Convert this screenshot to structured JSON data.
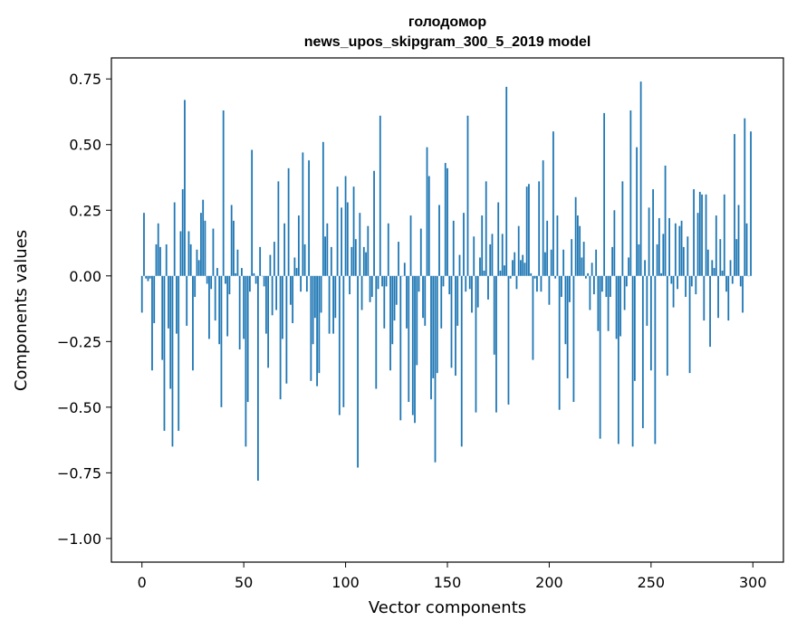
{
  "chart_data": {
    "type": "bar",
    "title_line1": "голодомор",
    "title_line2": "news_upos_skipgram_300_5_2019 model",
    "xlabel": "Vector components",
    "ylabel": "Components values",
    "xlim": [
      -15,
      315
    ],
    "ylim": [
      -1.09,
      0.83
    ],
    "xticks": [
      0,
      50,
      100,
      150,
      200,
      250,
      300
    ],
    "xtick_labels": [
      "0",
      "50",
      "100",
      "150",
      "200",
      "250",
      "300"
    ],
    "yticks": [
      0.75,
      0.5,
      0.25,
      0.0,
      -0.25,
      -0.5,
      -0.75,
      -1.0
    ],
    "ytick_labels": [
      "0.75",
      "0.50",
      "0.25",
      "0.00",
      "−0.25",
      "−0.50",
      "−0.75",
      "−1.00"
    ],
    "bar_color": "#1f77b4",
    "grid": false,
    "values": [
      -0.14,
      0.24,
      -0.01,
      -0.02,
      -0.01,
      -0.36,
      -0.18,
      0.12,
      0.2,
      0.11,
      -0.32,
      -0.59,
      0.12,
      -0.2,
      -0.43,
      -0.65,
      0.28,
      -0.22,
      -0.59,
      0.17,
      0.33,
      0.67,
      -0.19,
      0.17,
      0.12,
      -0.36,
      -0.08,
      0.1,
      0.06,
      0.24,
      0.29,
      0.21,
      -0.03,
      -0.24,
      -0.05,
      0.18,
      -0.17,
      0.03,
      -0.26,
      -0.5,
      0.63,
      -0.03,
      -0.23,
      -0.07,
      0.27,
      0.21,
      0.01,
      0.1,
      -0.28,
      0.03,
      -0.24,
      -0.65,
      -0.48,
      -0.06,
      0.48,
      0.01,
      -0.03,
      -0.78,
      0.11,
      0.0,
      -0.04,
      -0.22,
      -0.35,
      0.08,
      -0.15,
      0.13,
      -0.13,
      0.36,
      -0.47,
      -0.24,
      0.2,
      -0.41,
      0.41,
      -0.11,
      -0.18,
      0.07,
      0.03,
      0.23,
      -0.06,
      0.47,
      0.12,
      -0.06,
      0.44,
      -0.4,
      -0.26,
      -0.16,
      -0.42,
      -0.37,
      -0.14,
      0.51,
      0.15,
      0.2,
      -0.22,
      0.11,
      -0.22,
      -0.16,
      0.34,
      -0.53,
      0.26,
      -0.5,
      0.38,
      0.28,
      -0.07,
      0.11,
      0.34,
      0.14,
      -0.73,
      0.24,
      -0.13,
      0.11,
      0.09,
      0.19,
      -0.1,
      -0.08,
      0.4,
      -0.43,
      -0.05,
      0.61,
      -0.04,
      -0.2,
      -0.04,
      0.2,
      -0.36,
      -0.26,
      -0.17,
      -0.11,
      0.13,
      -0.55,
      0.0,
      0.05,
      -0.2,
      -0.48,
      0.23,
      -0.53,
      -0.56,
      -0.34,
      -0.06,
      0.18,
      -0.16,
      -0.19,
      0.49,
      0.38,
      -0.47,
      -0.39,
      -0.71,
      -0.37,
      0.27,
      -0.2,
      -0.04,
      0.43,
      0.41,
      -0.07,
      -0.35,
      0.21,
      -0.38,
      -0.19,
      0.08,
      -0.65,
      0.24,
      -0.06,
      0.61,
      -0.05,
      -0.14,
      0.15,
      -0.52,
      -0.12,
      0.07,
      0.23,
      0.02,
      0.36,
      -0.09,
      0.12,
      0.16,
      -0.3,
      -0.52,
      0.28,
      0.02,
      0.16,
      0.04,
      0.72,
      -0.49,
      -0.01,
      0.06,
      0.09,
      -0.05,
      0.19,
      0.06,
      0.08,
      0.05,
      0.34,
      0.35,
      0.01,
      -0.32,
      -0.01,
      -0.06,
      0.36,
      -0.06,
      0.44,
      0.09,
      0.21,
      -0.11,
      0.1,
      0.55,
      -0.01,
      0.23,
      -0.51,
      -0.08,
      0.1,
      -0.26,
      -0.39,
      -0.1,
      0.14,
      -0.48,
      0.3,
      0.23,
      0.19,
      0.07,
      0.13,
      -0.01,
      0.01,
      -0.13,
      0.05,
      -0.07,
      0.1,
      -0.21,
      -0.62,
      -0.06,
      0.62,
      -0.08,
      -0.21,
      -0.08,
      0.11,
      0.25,
      -0.24,
      -0.64,
      -0.23,
      0.36,
      -0.13,
      -0.04,
      0.07,
      0.63,
      -0.65,
      -0.4,
      0.49,
      0.12,
      0.74,
      -0.58,
      0.06,
      -0.19,
      0.26,
      -0.36,
      0.33,
      -0.64,
      0.12,
      0.22,
      0.01,
      0.16,
      0.42,
      -0.38,
      0.22,
      -0.03,
      -0.12,
      0.2,
      -0.05,
      0.19,
      0.21,
      0.11,
      -0.08,
      0.15,
      -0.37,
      -0.04,
      0.33,
      -0.07,
      0.24,
      0.32,
      0.31,
      -0.17,
      0.31,
      0.1,
      -0.27,
      0.06,
      0.03,
      0.23,
      -0.16,
      0.14,
      0.02,
      0.31,
      -0.06,
      -0.17,
      0.06,
      -0.03,
      0.54,
      0.14,
      0.27,
      -0.04,
      -0.14,
      0.6,
      0.2,
      0.0,
      0.55
    ]
  }
}
